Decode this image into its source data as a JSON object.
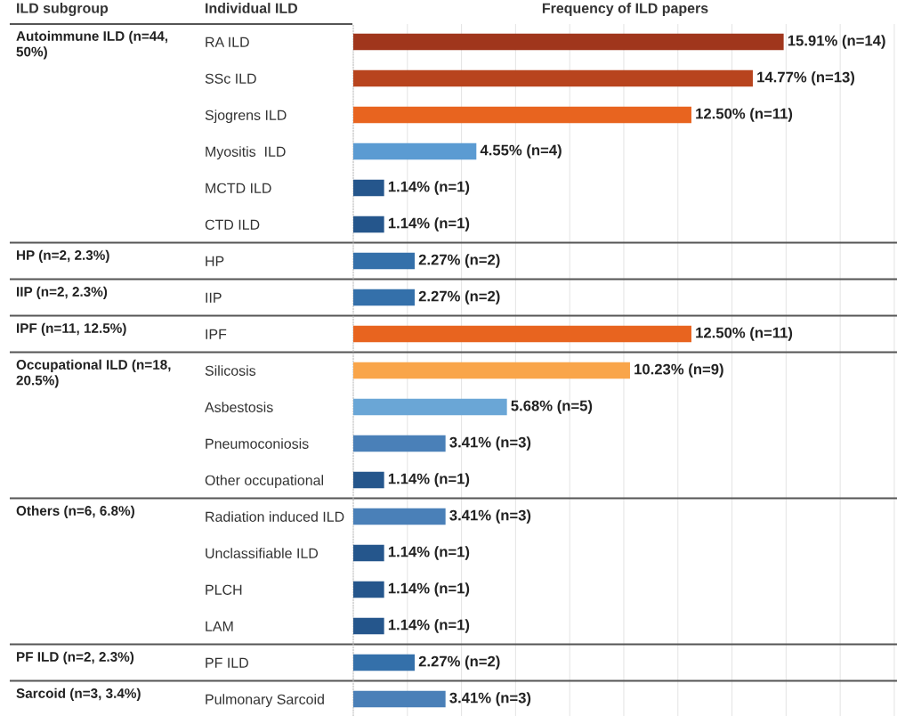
{
  "chart_data": {
    "type": "bar",
    "orientation": "horizontal",
    "title": "Frequency of ILD papers",
    "categories": [
      "RA ILD",
      "SSc ILD",
      "Sjogrens ILD",
      "Myositis  ILD",
      "MCTD ILD",
      "CTD ILD",
      "HP",
      "IIP",
      "IPF",
      "Silicosis",
      "Asbestosis",
      "Pneumoconiosis",
      "Other occupational",
      "Radiation induced ILD",
      "Unclassifiable ILD",
      "PLCH",
      "LAM",
      "PF ILD",
      "Pulmonary Sarcoid"
    ],
    "values": [
      15.91,
      14.77,
      12.5,
      4.55,
      1.14,
      1.14,
      2.27,
      2.27,
      12.5,
      10.23,
      5.68,
      3.41,
      1.14,
      3.41,
      1.14,
      1.14,
      1.14,
      2.27,
      3.41
    ],
    "value_labels": [
      "15.91% (n=14)",
      "14.77% (n=13)",
      "12.50% (n=11)",
      "4.55% (n=4)",
      "1.14% (n=1)",
      "1.14% (n=1)",
      "2.27% (n=2)",
      "2.27% (n=2)",
      "12.50% (n=11)",
      "10.23% (n=9)",
      "5.68% (n=5)",
      "3.41% (n=3)",
      "1.14% (n=1)",
      "3.41% (n=3)",
      "1.14% (n=1)",
      "1.14% (n=1)",
      "1.14% (n=1)",
      "2.27% (n=2)",
      "3.41% (n=3)"
    ],
    "colors": [
      "#a0361c",
      "#b8441e",
      "#e8641f",
      "#5b9bd2",
      "#25568c",
      "#25568c",
      "#3470aa",
      "#3470aa",
      "#e8641f",
      "#f9a54a",
      "#6aa6d6",
      "#4a80b8",
      "#25568c",
      "#4a80b8",
      "#25568c",
      "#25568c",
      "#25568c",
      "#3470aa",
      "#4a80b8"
    ],
    "xlim": [
      0,
      20.1
    ],
    "xticks": [
      {
        "value": 2,
        "label": null
      },
      {
        "value": 4,
        "label": null
      },
      {
        "value": 6,
        "label": null
      },
      {
        "value": 8,
        "label": null
      },
      {
        "value": 10,
        "label": null
      },
      {
        "value": 12,
        "label": null
      },
      {
        "value": 14,
        "label": null
      },
      {
        "value": 16,
        "label": null
      },
      {
        "value": 18,
        "label": null
      },
      {
        "value": 20,
        "label": null
      }
    ],
    "grid": "x",
    "legend": false,
    "tick_labels": "y",
    "annotations": [
      "ILD subgroup",
      "Individual ILD",
      "Autoimmune ILD (n=44, 50%)",
      "HP (n=2, 2.3%)",
      "IIP (n=2, 2.3%)",
      "IPF (n=11, 12.5%)",
      "Occupational ILD (n=18, 20.5%)",
      "Others (n=6, 6.8%)",
      "PF ILD (n=2, 2.3%)",
      "Sarcoid (n=3, 3.4%)"
    ]
  }
}
